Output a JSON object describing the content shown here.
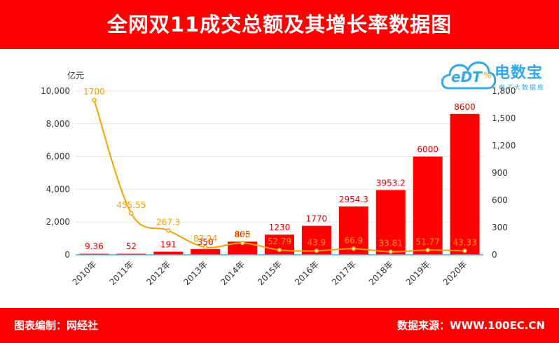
{
  "header": {
    "title": "全网双11成交总额及其增长率数据图"
  },
  "footer": {
    "left_text": "图表编制：网经社",
    "right_text": "数据来源：WWW.100EC.CN"
  },
  "logo": {
    "name": "电数宝",
    "letters": "eDT",
    "sub": "电子大数据库"
  },
  "colors": {
    "header": "#ff0000",
    "bar": "#ff0000",
    "line": "#f5a000",
    "bar_label": "#dd0000",
    "logo": "#33a8e8"
  },
  "chart_data": {
    "type": "bar",
    "categories": [
      "2010年",
      "2011年",
      "2012年",
      "2013年",
      "2014年",
      "2015年",
      "2016年",
      "2017年",
      "2018年",
      "2019年",
      "2020年"
    ],
    "series": [
      {
        "type": "bar",
        "axis": "left",
        "values": [
          9.36,
          52,
          191,
          350,
          805,
          1230,
          1770,
          2954.3,
          3953.2,
          6000,
          8600
        ],
        "labels": [
          "9.36",
          "52",
          "191",
          "350",
          "805",
          "1230",
          "1770",
          "2954.3",
          "3953.2",
          "6000",
          "8600"
        ]
      },
      {
        "type": "line",
        "axis": "right",
        "values": [
          1700,
          455.55,
          267.3,
          83.24,
          130,
          52.79,
          43.9,
          66.9,
          33.81,
          51.77,
          43.33
        ],
        "labels": [
          "1700",
          "455.55",
          "267.3",
          "83.24",
          "130",
          "52.79",
          "43.9",
          "66.9",
          "33.81",
          "51.77",
          "43.33"
        ]
      }
    ],
    "ylabel_left": "亿元",
    "ylabel_right": "%",
    "ylim_left": [
      0,
      10000
    ],
    "yticks_left": [
      "0",
      "2,000",
      "4,000",
      "6,000",
      "8,000",
      "10,000"
    ],
    "ylim_right": [
      0,
      1800
    ],
    "yticks_right": [
      "0",
      "300",
      "600",
      "900",
      "1,200",
      "1,500",
      "1,800"
    ],
    "grid": true,
    "legend": "none"
  }
}
